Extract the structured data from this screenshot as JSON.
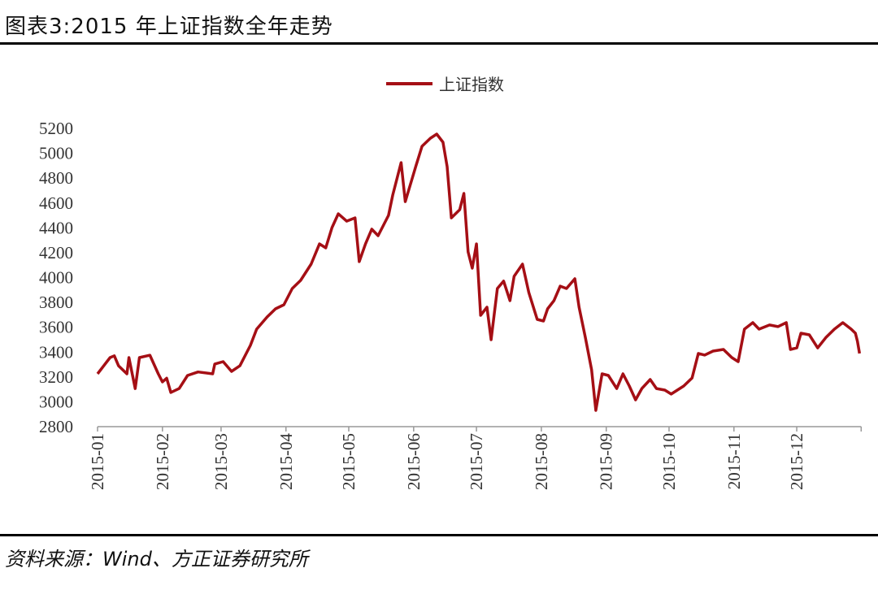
{
  "header": {
    "title": "图表3:2015 年上证指数全年走势"
  },
  "footer": {
    "source": "资料来源：Wind、方正证券研究所"
  },
  "chart_data": {
    "type": "line",
    "title": "图表3:2015 年上证指数全年走势",
    "xlabel": "",
    "ylabel": "",
    "ylim": [
      2800,
      5200
    ],
    "yticks": [
      "2800",
      "3000",
      "3200",
      "3400",
      "3600",
      "3800",
      "4000",
      "4200",
      "4400",
      "4600",
      "4800",
      "5000",
      "5200"
    ],
    "xlim": [
      "2015-01-01",
      "2015-12-31"
    ],
    "xticks": [
      "2015-01",
      "2015-02",
      "2015-03",
      "2015-04",
      "2015-05",
      "2015-06",
      "2015-07",
      "2015-08",
      "2015-09",
      "2015-10",
      "2015-11",
      "2015-12"
    ],
    "grid": false,
    "legend": {
      "position": "top-center",
      "entries": [
        "上证指数"
      ]
    },
    "series": [
      {
        "name": "上证指数",
        "color": "#A50F15",
        "points": [
          [
            "2015-01-01",
            3225
          ],
          [
            "2015-01-07",
            3356
          ],
          [
            "2015-01-09",
            3370
          ],
          [
            "2015-01-11",
            3290
          ],
          [
            "2015-01-15",
            3225
          ],
          [
            "2015-01-16",
            3356
          ],
          [
            "2015-01-19",
            3107
          ],
          [
            "2015-01-21",
            3356
          ],
          [
            "2015-01-26",
            3375
          ],
          [
            "2015-01-30",
            3225
          ],
          [
            "2015-02-01",
            3160
          ],
          [
            "2015-02-03",
            3190
          ],
          [
            "2015-02-05",
            3075
          ],
          [
            "2015-02-09",
            3107
          ],
          [
            "2015-02-13",
            3212
          ],
          [
            "2015-02-18",
            3240
          ],
          [
            "2015-02-25",
            3225
          ],
          [
            "2015-02-26",
            3304
          ],
          [
            "2015-03-02",
            3323
          ],
          [
            "2015-03-06",
            3245
          ],
          [
            "2015-03-10",
            3290
          ],
          [
            "2015-03-15",
            3454
          ],
          [
            "2015-03-18",
            3585
          ],
          [
            "2015-03-23",
            3683
          ],
          [
            "2015-03-27",
            3748
          ],
          [
            "2015-03-31",
            3781
          ],
          [
            "2015-04-04",
            3912
          ],
          [
            "2015-04-08",
            3977
          ],
          [
            "2015-04-13",
            4108
          ],
          [
            "2015-04-17",
            4271
          ],
          [
            "2015-04-20",
            4239
          ],
          [
            "2015-04-23",
            4402
          ],
          [
            "2015-04-26",
            4513
          ],
          [
            "2015-04-30",
            4454
          ],
          [
            "2015-05-04",
            4480
          ],
          [
            "2015-05-06",
            4128
          ],
          [
            "2015-05-09",
            4271
          ],
          [
            "2015-05-12",
            4389
          ],
          [
            "2015-05-15",
            4337
          ],
          [
            "2015-05-20",
            4500
          ],
          [
            "2015-05-22",
            4664
          ],
          [
            "2015-05-26",
            4925
          ],
          [
            "2015-05-28",
            4611
          ],
          [
            "2015-06-02",
            4893
          ],
          [
            "2015-06-05",
            5056
          ],
          [
            "2015-06-09",
            5121
          ],
          [
            "2015-06-12",
            5154
          ],
          [
            "2015-06-15",
            5089
          ],
          [
            "2015-06-17",
            4893
          ],
          [
            "2015-06-19",
            4480
          ],
          [
            "2015-06-23",
            4546
          ],
          [
            "2015-06-25",
            4677
          ],
          [
            "2015-06-27",
            4206
          ],
          [
            "2015-06-29",
            4075
          ],
          [
            "2015-07-01",
            4271
          ],
          [
            "2015-07-03",
            3696
          ],
          [
            "2015-07-06",
            3761
          ],
          [
            "2015-07-08",
            3500
          ],
          [
            "2015-07-11",
            3912
          ],
          [
            "2015-07-14",
            3971
          ],
          [
            "2015-07-17",
            3814
          ],
          [
            "2015-07-19",
            4010
          ],
          [
            "2015-07-23",
            4108
          ],
          [
            "2015-07-26",
            3879
          ],
          [
            "2015-07-30",
            3663
          ],
          [
            "2015-08-02",
            3650
          ],
          [
            "2015-08-04",
            3748
          ],
          [
            "2015-08-07",
            3814
          ],
          [
            "2015-08-10",
            3931
          ],
          [
            "2015-08-13",
            3912
          ],
          [
            "2015-08-17",
            3990
          ],
          [
            "2015-08-19",
            3761
          ],
          [
            "2015-08-22",
            3519
          ],
          [
            "2015-08-25",
            3258
          ],
          [
            "2015-08-27",
            2931
          ],
          [
            "2015-08-30",
            3225
          ],
          [
            "2015-09-02",
            3212
          ],
          [
            "2015-09-06",
            3107
          ],
          [
            "2015-09-09",
            3225
          ],
          [
            "2015-09-12",
            3127
          ],
          [
            "2015-09-15",
            3016
          ],
          [
            "2015-09-18",
            3107
          ],
          [
            "2015-09-22",
            3179
          ],
          [
            "2015-09-25",
            3107
          ],
          [
            "2015-09-29",
            3094
          ],
          [
            "2015-10-02",
            3062
          ],
          [
            "2015-10-08",
            3127
          ],
          [
            "2015-10-12",
            3192
          ],
          [
            "2015-10-15",
            3389
          ],
          [
            "2015-10-18",
            3376
          ],
          [
            "2015-10-22",
            3408
          ],
          [
            "2015-10-27",
            3421
          ],
          [
            "2015-10-31",
            3356
          ],
          [
            "2015-11-03",
            3323
          ],
          [
            "2015-11-06",
            3585
          ],
          [
            "2015-11-10",
            3637
          ],
          [
            "2015-11-13",
            3585
          ],
          [
            "2015-11-18",
            3618
          ],
          [
            "2015-11-22",
            3605
          ],
          [
            "2015-11-26",
            3637
          ],
          [
            "2015-11-28",
            3421
          ],
          [
            "2015-12-01",
            3434
          ],
          [
            "2015-12-03",
            3552
          ],
          [
            "2015-12-07",
            3539
          ],
          [
            "2015-12-11",
            3434
          ],
          [
            "2015-12-15",
            3519
          ],
          [
            "2015-12-19",
            3585
          ],
          [
            "2015-12-23",
            3637
          ],
          [
            "2015-12-27",
            3585
          ],
          [
            "2015-12-29",
            3552
          ],
          [
            "2015-12-30",
            3487
          ],
          [
            "2015-12-31",
            3389
          ]
        ]
      }
    ]
  }
}
